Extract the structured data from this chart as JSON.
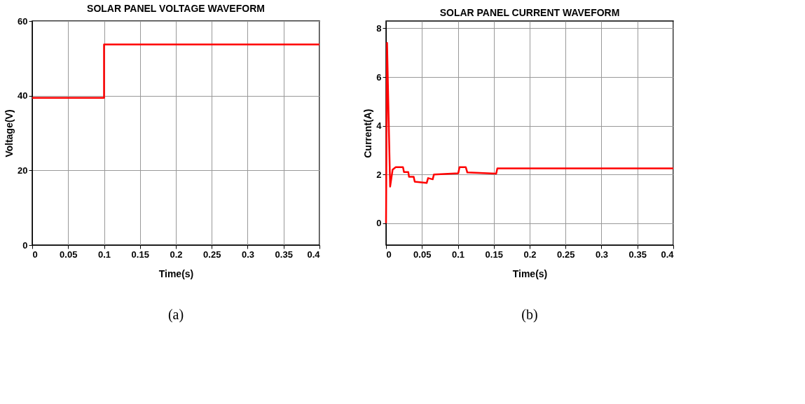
{
  "chart_data": [
    {
      "type": "line",
      "title": "SOLAR PANEL VOLTAGE WAVEFORM",
      "xlabel": "Time(s)",
      "ylabel": "Voltage(V)",
      "series": [
        {
          "color": "#ff0000",
          "x": [
            0,
            0.1,
            0.1,
            0.4
          ],
          "values": [
            39.4,
            39.4,
            53.7,
            53.7
          ]
        }
      ],
      "xlim": [
        0,
        0.4
      ],
      "xticks": [
        0,
        0.05,
        0.1,
        0.15,
        0.2,
        0.25,
        0.3,
        0.35,
        0.4
      ],
      "ylim": [
        0,
        60
      ],
      "yticks": [
        0,
        20,
        40,
        60
      ],
      "grid": true,
      "annotations": [
        "(a)"
      ]
    },
    {
      "type": "line",
      "title": "SOLAR PANEL CURRENT WAVEFORM",
      "xlabel": "Time(s)",
      "ylabel": "Current(A)",
      "series": [
        {
          "color": "#ff0000",
          "x": [
            0,
            0.0014,
            0.0035,
            0.0057,
            0.0092,
            0.0135,
            0.0236,
            0.025,
            0.031,
            0.032,
            0.0385,
            0.04,
            0.0566,
            0.0586,
            0.065,
            0.0667,
            0.1006,
            0.1023,
            0.111,
            0.1132,
            0.1534,
            0.155,
            0.4
          ],
          "values": [
            0,
            7.4,
            4.5,
            1.5,
            2.2,
            2.3,
            2.3,
            2.1,
            2.1,
            1.9,
            1.9,
            1.7,
            1.65,
            1.85,
            1.8,
            2.0,
            2.05,
            2.3,
            2.3,
            2.08,
            2.03,
            2.25,
            2.25
          ]
        }
      ],
      "xlim": [
        0,
        0.4
      ],
      "xticks": [
        0,
        0.05,
        0.1,
        0.15,
        0.2,
        0.25,
        0.3,
        0.35,
        0.4
      ],
      "ylim": [
        -0.9,
        8.3
      ],
      "yticks": [
        0,
        2,
        4,
        6,
        8
      ],
      "grid": true,
      "annotations": [
        "(b)"
      ]
    }
  ]
}
